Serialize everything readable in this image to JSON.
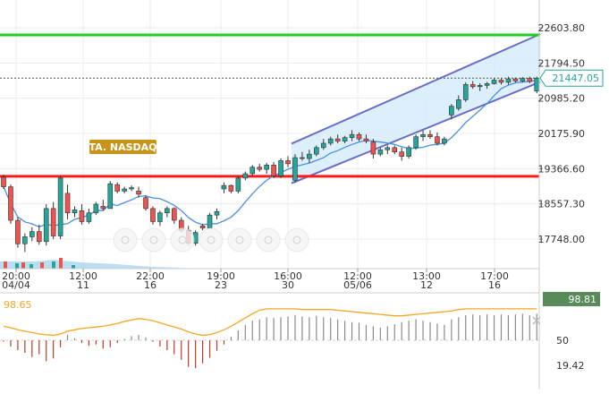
{
  "chart_data": {
    "type": "candlestick",
    "symbol_label": "TA. NASDAQ",
    "price_axis": {
      "ticks": [
        22603.8,
        21794.5,
        20985.2,
        20175.9,
        19366.6,
        18557.3,
        17748.0
      ],
      "tick_labels": [
        "22603.80",
        "21794.50",
        "20985.20",
        "20175.90",
        "19366.60",
        "18557.30",
        "17748.00"
      ],
      "ylim": [
        17300,
        23000
      ]
    },
    "last_price": 21447.05,
    "last_price_label": "21447.05",
    "time_axis": [
      {
        "time": "20:00",
        "date": "04/04"
      },
      {
        "time": "12:00",
        "date": "11"
      },
      {
        "time": "22:00",
        "date": "16"
      },
      {
        "time": "19:00",
        "date": "23"
      },
      {
        "time": "16:00",
        "date": "30"
      },
      {
        "time": "12:00",
        "date": "05/06"
      },
      {
        "time": "13:00",
        "date": "12"
      },
      {
        "time": "17:00",
        "date": "16"
      }
    ],
    "horizontal_levels": [
      {
        "price": 22440,
        "color": "#22cc22"
      },
      {
        "price": 19190,
        "color": "#ff1a1a"
      }
    ],
    "channel": {
      "start_index": 41,
      "end_index": 75,
      "lower_start": 19030,
      "lower_end": 21360,
      "upper_start": 19940,
      "upper_end": 22460
    },
    "candles": [
      [
        19170,
        19230,
        18900,
        18950
      ],
      [
        18950,
        19000,
        18100,
        18180
      ],
      [
        18180,
        18250,
        17550,
        17640
      ],
      [
        17640,
        17880,
        17450,
        17800
      ],
      [
        17800,
        18020,
        17700,
        17920
      ],
      [
        17920,
        18080,
        17620,
        17690
      ],
      [
        17690,
        18550,
        17600,
        18450
      ],
      [
        18450,
        18600,
        17750,
        17820
      ],
      [
        17820,
        19200,
        17750,
        19150
      ],
      [
        18800,
        19000,
        18200,
        18350
      ],
      [
        18350,
        18500,
        18250,
        18420
      ],
      [
        18400,
        18550,
        18080,
        18150
      ],
      [
        18150,
        18450,
        18100,
        18350
      ],
      [
        18350,
        18600,
        18300,
        18550
      ],
      [
        18500,
        18650,
        18400,
        18450
      ],
      [
        18450,
        19080,
        18450,
        19020
      ],
      [
        19000,
        19050,
        18800,
        18850
      ],
      [
        18850,
        18950,
        18800,
        18900
      ],
      [
        18900,
        18980,
        18850,
        18930
      ],
      [
        18850,
        18950,
        18700,
        18780
      ],
      [
        18700,
        18750,
        18400,
        18450
      ],
      [
        18450,
        18500,
        18080,
        18150
      ],
      [
        18150,
        18400,
        18050,
        18350
      ],
      [
        18350,
        18500,
        18250,
        18450
      ],
      [
        18450,
        18480,
        18100,
        18180
      ],
      [
        18180,
        18250,
        17900,
        17950
      ],
      [
        17950,
        18050,
        17600,
        17650
      ],
      [
        17650,
        17950,
        17600,
        17900
      ],
      [
        18050,
        18100,
        17950,
        18000
      ],
      [
        18000,
        18350,
        18000,
        18300
      ],
      [
        18300,
        18450,
        18200,
        18380
      ],
      [
        18900,
        19050,
        18800,
        18980
      ],
      [
        18980,
        19000,
        18800,
        18850
      ],
      [
        18850,
        19200,
        18800,
        19150
      ],
      [
        19150,
        19300,
        19100,
        19250
      ],
      [
        19250,
        19450,
        19200,
        19400
      ],
      [
        19400,
        19480,
        19300,
        19350
      ],
      [
        19350,
        19500,
        19250,
        19450
      ],
      [
        19450,
        19520,
        19150,
        19200
      ],
      [
        19200,
        19600,
        19150,
        19550
      ],
      [
        19550,
        19650,
        19400,
        19480
      ],
      [
        19100,
        19700,
        19050,
        19620
      ],
      [
        19620,
        19750,
        19550,
        19600
      ],
      [
        19600,
        19800,
        19500,
        19700
      ],
      [
        19700,
        19900,
        19650,
        19850
      ],
      [
        19850,
        20050,
        19800,
        19950
      ],
      [
        19950,
        20100,
        19900,
        20050
      ],
      [
        20050,
        20150,
        19950,
        20000
      ],
      [
        20000,
        20120,
        19950,
        20080
      ],
      [
        20080,
        20250,
        20000,
        20150
      ],
      [
        20150,
        20200,
        20000,
        20050
      ],
      [
        20050,
        20150,
        19950,
        20000
      ],
      [
        19980,
        20050,
        19600,
        19700
      ],
      [
        19700,
        19850,
        19650,
        19800
      ],
      [
        19800,
        19900,
        19700,
        19850
      ],
      [
        19850,
        19900,
        19700,
        19750
      ],
      [
        19750,
        19850,
        19550,
        19650
      ],
      [
        19650,
        19900,
        19600,
        19850
      ],
      [
        19850,
        20150,
        19800,
        20100
      ],
      [
        20100,
        20250,
        20000,
        20150
      ],
      [
        20150,
        20250,
        20050,
        20100
      ],
      [
        20100,
        20200,
        19900,
        19950
      ],
      [
        19950,
        20100,
        19900,
        20050
      ],
      [
        20600,
        20850,
        20500,
        20800
      ],
      [
        20750,
        21050,
        20700,
        20950
      ],
      [
        20950,
        21350,
        20900,
        21300
      ],
      [
        21300,
        21380,
        21200,
        21250
      ],
      [
        21250,
        21330,
        21150,
        21280
      ],
      [
        21280,
        21360,
        21200,
        21320
      ],
      [
        21320,
        21450,
        21300,
        21400
      ],
      [
        21400,
        21450,
        21300,
        21350
      ],
      [
        21350,
        21480,
        21300,
        21430
      ],
      [
        21430,
        21460,
        21350,
        21380
      ],
      [
        21380,
        21470,
        21350,
        21440
      ],
      [
        21440,
        21480,
        21330,
        21370
      ],
      [
        21150,
        21480,
        21100,
        21447
      ]
    ],
    "ma_line": {
      "color": "#4a90e2"
    },
    "oscillator": {
      "current_label": "98.65",
      "right_badge": "98.81",
      "level_labels": [
        "50",
        "19.42"
      ],
      "histogram": [
        -2,
        -9,
        -14,
        -18,
        -24,
        -20,
        -30,
        -26,
        -10,
        8,
        3,
        -4,
        -8,
        -6,
        -12,
        -10,
        -4,
        2,
        6,
        8,
        4,
        -2,
        -9,
        -14,
        -20,
        -28,
        -38,
        -40,
        -33,
        -25,
        -15,
        -6,
        5,
        14,
        22,
        28,
        30,
        33,
        32,
        33,
        34,
        36,
        34,
        33,
        35,
        33,
        32,
        30,
        28,
        26,
        25,
        22,
        20,
        18,
        20,
        23,
        26,
        28,
        30,
        28,
        26,
        24,
        22,
        30,
        33,
        36,
        37,
        36,
        37,
        36,
        37,
        36,
        37,
        38,
        36,
        38
      ],
      "line": [
        20,
        18,
        15,
        13,
        11,
        9,
        8,
        7,
        9,
        13,
        15,
        17,
        18,
        19,
        20,
        22,
        24,
        27,
        29,
        31,
        30,
        28,
        25,
        22,
        19,
        16,
        12,
        9,
        7,
        8,
        11,
        15,
        20,
        26,
        32,
        38,
        43,
        45,
        45,
        45,
        45,
        45,
        44,
        44,
        44,
        44,
        44,
        43,
        42,
        41,
        40,
        39,
        38,
        37,
        36,
        35,
        35,
        36,
        37,
        38,
        39,
        40,
        41,
        42,
        44,
        45,
        45,
        45,
        45,
        45,
        45,
        45,
        45,
        45,
        45,
        45
      ]
    }
  },
  "colors": {
    "up": "#26a69a",
    "down": "#ef5350",
    "grid": "#ececec",
    "channel_fill": "#d6ecfa",
    "channel_line": "#6a6ec7",
    "osc_line": "#f5a623",
    "osc_bar": "#8a8a8a",
    "osc_bar_neg": "#c0392b"
  }
}
